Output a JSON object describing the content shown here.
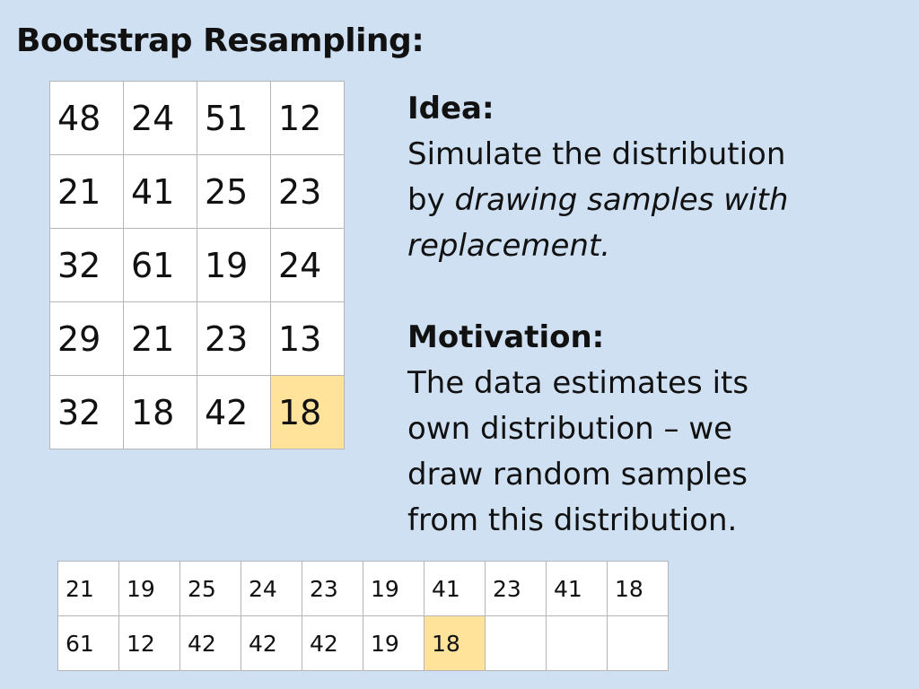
{
  "title": "Bootstrap Resampling:",
  "data_grid": {
    "rows": [
      [
        "48",
        "24",
        "51",
        "12"
      ],
      [
        "21",
        "41",
        "25",
        "23"
      ],
      [
        "32",
        "61",
        "19",
        "24"
      ],
      [
        "29",
        "21",
        "23",
        "13"
      ],
      [
        "32",
        "18",
        "42",
        "18"
      ]
    ],
    "highlighted_cell": {
      "row": 4,
      "col": 3
    }
  },
  "idea": {
    "heading": "Idea:",
    "line1": "Simulate the distribution",
    "line2_prefix": "by ",
    "line2_italic": "drawing samples with",
    "line3_italic": "replacement."
  },
  "motivation": {
    "heading": "Motivation:",
    "lines": [
      "The data estimates its",
      "own distribution – we",
      "draw random samples",
      "from this distribution."
    ]
  },
  "sample_grid": {
    "rows": [
      [
        "21",
        "19",
        "25",
        "24",
        "23",
        "19",
        "41",
        "23",
        "41",
        "18"
      ],
      [
        "61",
        "12",
        "42",
        "42",
        "42",
        "19",
        "18",
        "",
        "",
        ""
      ]
    ],
    "highlighted_cell": {
      "row": 1,
      "col": 6
    }
  },
  "colors": {
    "background": "#cfe0f2",
    "highlight": "#ffe39a",
    "cell_border": "#b5b5b5",
    "text": "#111111"
  }
}
